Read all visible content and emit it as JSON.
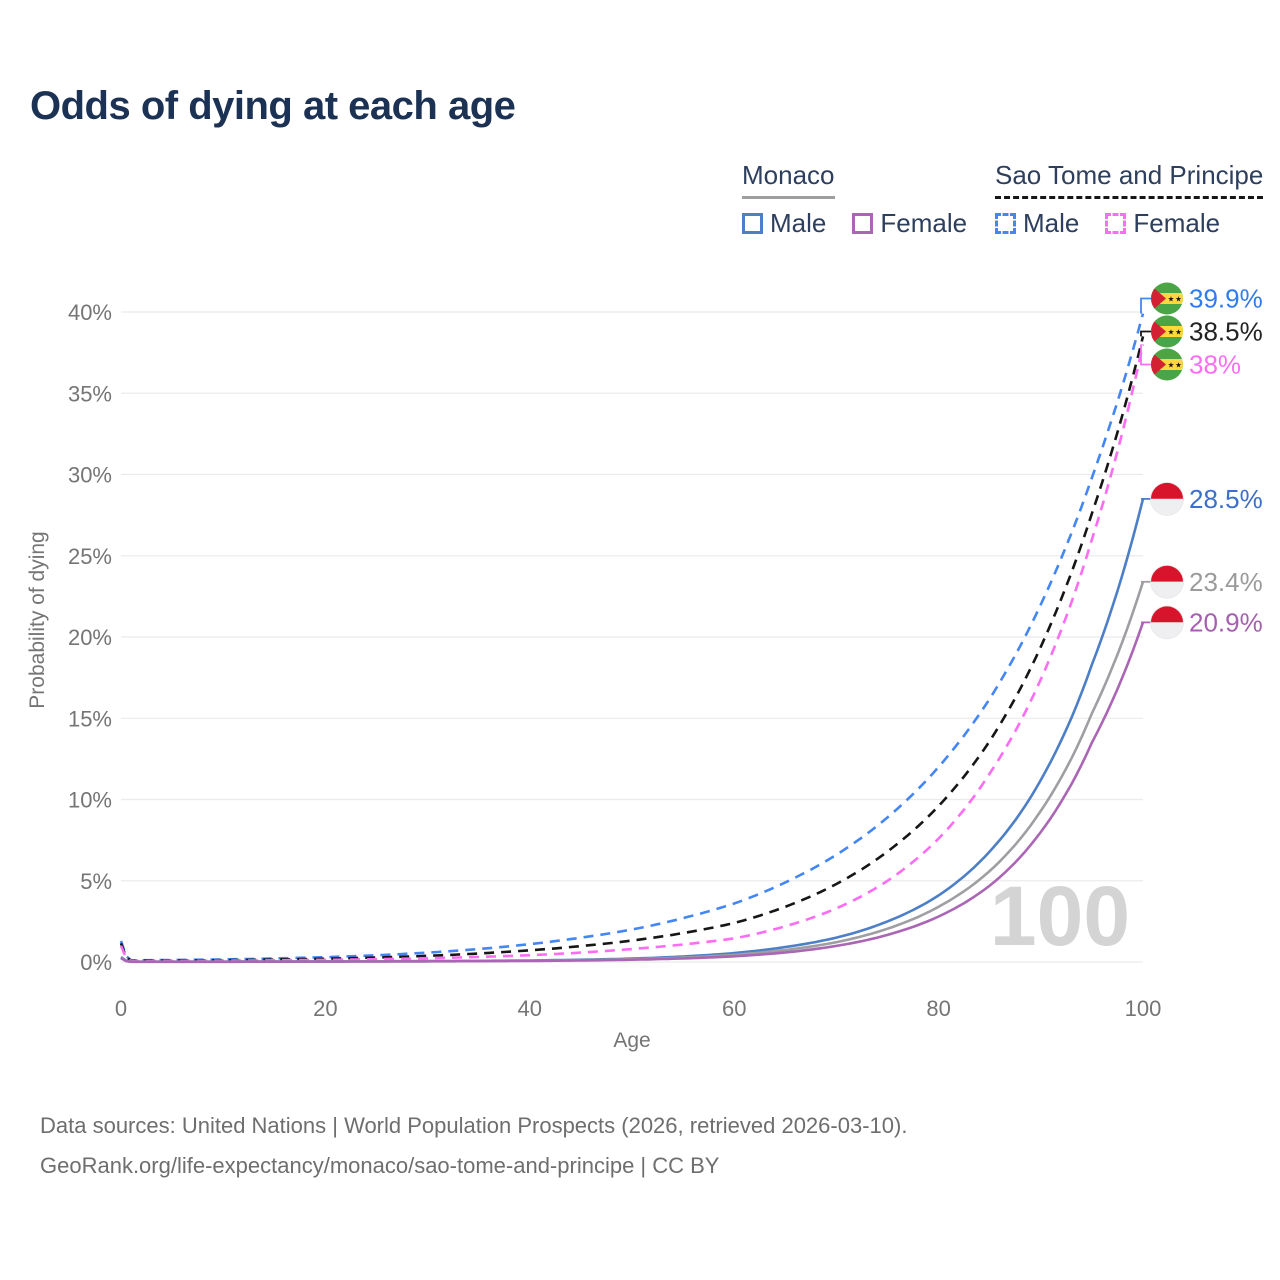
{
  "title": "Odds of dying at each age",
  "legend": {
    "groups": [
      {
        "name": "Monaco",
        "line_style": "solid",
        "line_color": "#9e9e9e",
        "items": [
          {
            "label": "Male",
            "color": "#4d7fc7",
            "dashed": false
          },
          {
            "label": "Female",
            "color": "#aa66b4",
            "dashed": false
          }
        ]
      },
      {
        "name": "Sao Tome and Principe",
        "line_style": "dashed",
        "line_color": "#161616",
        "items": [
          {
            "label": "Male",
            "color": "#4486f4",
            "dashed": true
          },
          {
            "label": "Female",
            "color": "#fc6df4",
            "dashed": true
          }
        ]
      }
    ]
  },
  "chart_data": {
    "type": "line",
    "title": "Odds of dying at each age",
    "xlabel": "Age",
    "ylabel": "Probability of dying",
    "xlim": [
      0,
      100
    ],
    "ylim": [
      0,
      41
    ],
    "x_ticks": [
      0,
      20,
      40,
      60,
      80,
      100
    ],
    "y_ticks": [
      0,
      5,
      10,
      15,
      20,
      25,
      30,
      35,
      40
    ],
    "y_tick_suffix": "%",
    "grid": "horizontal",
    "legend_position": "top-right",
    "watermark": "100",
    "series": [
      {
        "id": "stp-male",
        "country": "Sao Tome and Principe",
        "flag": "stp",
        "sex": "Male",
        "color": "#4486f4",
        "label_color": "#2f7bf0",
        "dashed": true,
        "end_label": "39.9%",
        "points": [
          [
            0,
            1.3
          ],
          [
            1,
            0.1
          ],
          [
            10,
            0.16
          ],
          [
            20,
            0.3
          ],
          [
            30,
            0.58
          ],
          [
            40,
            1.1
          ],
          [
            45,
            1.5
          ],
          [
            50,
            2.0
          ],
          [
            55,
            2.7
          ],
          [
            60,
            3.6
          ],
          [
            65,
            4.9
          ],
          [
            70,
            6.6
          ],
          [
            75,
            8.9
          ],
          [
            80,
            12.0
          ],
          [
            85,
            16.2
          ],
          [
            90,
            22.0
          ],
          [
            95,
            29.8
          ],
          [
            100,
            39.9
          ]
        ]
      },
      {
        "id": "stp-total",
        "country": "Sao Tome and Principe",
        "flag": "stp",
        "sex": "Both",
        "color": "#161616",
        "label_color": "#222222",
        "dashed": true,
        "end_label": "38.5%",
        "points": [
          [
            0,
            1.15
          ],
          [
            1,
            0.08
          ],
          [
            10,
            0.11
          ],
          [
            20,
            0.2
          ],
          [
            30,
            0.38
          ],
          [
            40,
            0.72
          ],
          [
            45,
            0.98
          ],
          [
            50,
            1.32
          ],
          [
            55,
            1.78
          ],
          [
            60,
            2.4
          ],
          [
            65,
            3.4
          ],
          [
            70,
            4.8
          ],
          [
            75,
            6.8
          ],
          [
            80,
            9.6
          ],
          [
            85,
            13.6
          ],
          [
            90,
            19.4
          ],
          [
            95,
            27.6
          ],
          [
            100,
            38.5
          ]
        ]
      },
      {
        "id": "stp-female",
        "country": "Sao Tome and Principe",
        "flag": "stp",
        "sex": "Female",
        "color": "#fc6df4",
        "label_color": "#fc6df4",
        "dashed": true,
        "end_label": "38%",
        "points": [
          [
            0,
            1.0
          ],
          [
            1,
            0.06
          ],
          [
            10,
            0.08
          ],
          [
            20,
            0.13
          ],
          [
            30,
            0.23
          ],
          [
            40,
            0.42
          ],
          [
            45,
            0.58
          ],
          [
            50,
            0.8
          ],
          [
            55,
            1.08
          ],
          [
            60,
            1.45
          ],
          [
            65,
            2.2
          ],
          [
            70,
            3.3
          ],
          [
            75,
            5.0
          ],
          [
            80,
            7.6
          ],
          [
            85,
            11.6
          ],
          [
            90,
            17.4
          ],
          [
            95,
            26.0
          ],
          [
            100,
            38.0
          ]
        ]
      },
      {
        "id": "monaco-male",
        "country": "Monaco",
        "flag": "monaco",
        "sex": "Male",
        "color": "#4d7fc7",
        "label_color": "#3c6fca",
        "dashed": false,
        "end_label": "28.5%",
        "points": [
          [
            0,
            0.3
          ],
          [
            1,
            0.02
          ],
          [
            10,
            0.02
          ],
          [
            20,
            0.035
          ],
          [
            30,
            0.055
          ],
          [
            40,
            0.095
          ],
          [
            45,
            0.14
          ],
          [
            50,
            0.21
          ],
          [
            55,
            0.34
          ],
          [
            60,
            0.55
          ],
          [
            65,
            0.92
          ],
          [
            70,
            1.5
          ],
          [
            75,
            2.5
          ],
          [
            80,
            4.1
          ],
          [
            85,
            6.8
          ],
          [
            90,
            11.2
          ],
          [
            95,
            18.3
          ],
          [
            100,
            28.5
          ]
        ]
      },
      {
        "id": "monaco-total",
        "country": "Monaco",
        "flag": "monaco",
        "sex": "Both",
        "color": "#9e9ea3",
        "label_color": "#9b9b9b",
        "dashed": false,
        "end_label": "23.4%",
        "points": [
          [
            0,
            0.27
          ],
          [
            1,
            0.017
          ],
          [
            10,
            0.017
          ],
          [
            20,
            0.03
          ],
          [
            30,
            0.047
          ],
          [
            40,
            0.08
          ],
          [
            45,
            0.115
          ],
          [
            50,
            0.17
          ],
          [
            55,
            0.27
          ],
          [
            60,
            0.44
          ],
          [
            65,
            0.74
          ],
          [
            70,
            1.22
          ],
          [
            75,
            2.05
          ],
          [
            80,
            3.4
          ],
          [
            85,
            5.6
          ],
          [
            90,
            9.3
          ],
          [
            95,
            15.3
          ],
          [
            100,
            23.4
          ]
        ]
      },
      {
        "id": "monaco-female",
        "country": "Monaco",
        "flag": "monaco",
        "sex": "Female",
        "color": "#aa66b4",
        "label_color": "#a55fb0",
        "dashed": false,
        "end_label": "20.9%",
        "points": [
          [
            0,
            0.24
          ],
          [
            1,
            0.014
          ],
          [
            10,
            0.014
          ],
          [
            20,
            0.025
          ],
          [
            30,
            0.04
          ],
          [
            40,
            0.065
          ],
          [
            45,
            0.095
          ],
          [
            50,
            0.14
          ],
          [
            55,
            0.22
          ],
          [
            60,
            0.35
          ],
          [
            65,
            0.59
          ],
          [
            70,
            0.99
          ],
          [
            75,
            1.67
          ],
          [
            80,
            2.8
          ],
          [
            85,
            4.7
          ],
          [
            90,
            8.0
          ],
          [
            95,
            13.5
          ],
          [
            100,
            20.9
          ]
        ]
      }
    ],
    "flags": {
      "stp": {
        "green": "#4aa546",
        "yellow": "#ffd83d",
        "red": "#d42033",
        "star": "#141414"
      },
      "monaco": {
        "red": "#d8142c",
        "white": "#efeff1"
      }
    }
  },
  "footer": {
    "line1": "Data sources: United Nations | World Population Prospects (2026, retrieved 2026-03-10).",
    "line2": "GeoRank.org/life-expectancy/monaco/sao-tome-and-principe | CC BY"
  }
}
